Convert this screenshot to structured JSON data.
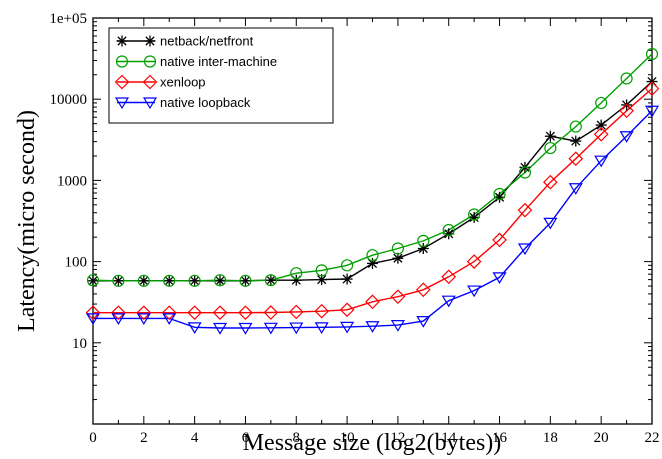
{
  "chart_data": {
    "type": "line",
    "xlabel": "Message size (log2(bytes))",
    "ylabel": "Latency(micro second)",
    "xlim": [
      0,
      22
    ],
    "ylim": [
      1,
      100000
    ],
    "yscale": "log",
    "grid": false,
    "legend_position": "top-left",
    "x_ticks": [
      0,
      2,
      4,
      6,
      8,
      10,
      12,
      14,
      16,
      18,
      20,
      22
    ],
    "x_tick_labels": [
      "0",
      "2",
      "4",
      "6",
      "8",
      "10",
      "12",
      "14",
      "16",
      "18",
      "20",
      "22"
    ],
    "y_ticks": [
      10,
      100,
      1000,
      10000,
      100000
    ],
    "y_tick_labels": [
      "10",
      "100",
      "1000",
      "10000",
      "1e+05"
    ],
    "x": [
      0,
      1,
      2,
      3,
      4,
      5,
      6,
      7,
      8,
      9,
      10,
      11,
      12,
      13,
      14,
      15,
      16,
      17,
      18,
      19,
      20,
      21,
      22
    ],
    "series": [
      {
        "name": "netback/netfront",
        "color": "#000000",
        "marker": "asterisk",
        "values": [
          58,
          58,
          58,
          58,
          58,
          58,
          58,
          59,
          59,
          60,
          61,
          95,
          110,
          145,
          220,
          350,
          620,
          1450,
          3500,
          3050,
          4800,
          8500,
          16500
        ]
      },
      {
        "name": "native inter-machine",
        "color": "#00a000",
        "marker": "circle",
        "values": [
          59,
          58,
          58,
          58,
          58,
          59,
          58,
          59,
          72,
          78,
          90,
          120,
          145,
          180,
          245,
          380,
          680,
          1250,
          2500,
          4600,
          9000,
          18000,
          36000
        ]
      },
      {
        "name": "xenloop",
        "color": "#ff0000",
        "marker": "diamond",
        "values": [
          23.5,
          23.5,
          23.5,
          23.5,
          23.5,
          23.5,
          23.5,
          23.6,
          24,
          24.5,
          25.5,
          32,
          37,
          45,
          65,
          100,
          185,
          430,
          950,
          1850,
          3700,
          7200,
          13500
        ]
      },
      {
        "name": "native loopback",
        "color": "#0000ff",
        "marker": "triangle-down",
        "values": [
          20,
          20,
          20,
          20,
          15.5,
          15.2,
          15.2,
          15.3,
          15.4,
          15.5,
          15.7,
          16,
          16.5,
          18.5,
          33,
          44,
          64,
          145,
          300,
          800,
          1750,
          3500,
          7200
        ]
      }
    ]
  }
}
